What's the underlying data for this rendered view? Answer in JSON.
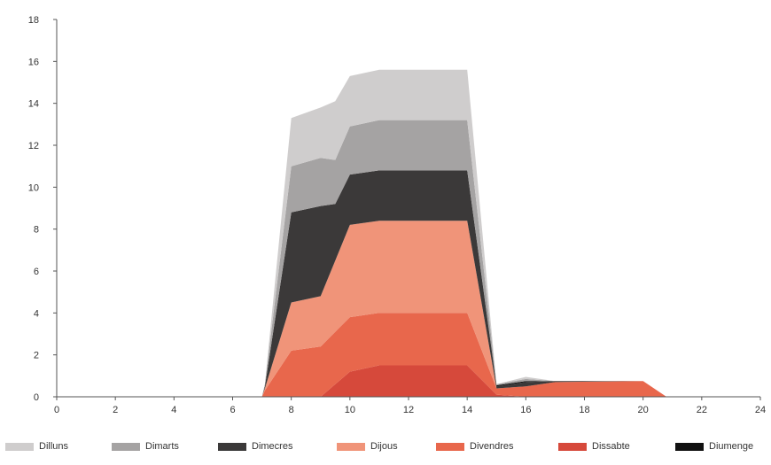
{
  "chart_data": {
    "type": "area",
    "stacked": true,
    "xlim": [
      0,
      24
    ],
    "ylim": [
      0,
      18
    ],
    "x_ticks": [
      "0",
      "2",
      "4",
      "6",
      "8",
      "10",
      "12",
      "14",
      "16",
      "18",
      "20",
      "22",
      "24"
    ],
    "y_ticks": [
      "0",
      "2",
      "4",
      "6",
      "8",
      "10",
      "12",
      "14",
      "16",
      "18"
    ],
    "grid": false,
    "legend_position": "bottom",
    "x": [
      0,
      7,
      7.1,
      8,
      9,
      9.5,
      10,
      11,
      14,
      15,
      16,
      17,
      20,
      20.8,
      24
    ],
    "series": [
      {
        "name": "Dissabte",
        "color": "#d6493b",
        "values": [
          0,
          0,
          0,
          0,
          0,
          0.6,
          1.2,
          1.5,
          1.5,
          0.1,
          0,
          0,
          0,
          0,
          0
        ]
      },
      {
        "name": "Divendres",
        "color": "#e8674c",
        "values": [
          0,
          0,
          0.3,
          2.2,
          2.4,
          2.5,
          2.6,
          2.5,
          2.5,
          0.3,
          0.5,
          0.7,
          0.75,
          0,
          0
        ]
      },
      {
        "name": "Dijous",
        "color": "#f09479",
        "values": [
          0,
          0,
          0.1,
          2.3,
          2.4,
          3.4,
          4.4,
          4.4,
          4.4,
          0,
          0,
          0,
          0,
          0,
          0
        ]
      },
      {
        "name": "Dimecres",
        "color": "#3b3939",
        "values": [
          0,
          0,
          0.1,
          4.3,
          4.3,
          2.7,
          2.4,
          2.4,
          2.4,
          0.1,
          0.2,
          0.05,
          0,
          0,
          0
        ]
      },
      {
        "name": "Diumenge",
        "color": "#111111",
        "values": [
          0,
          0,
          0,
          0,
          0,
          0,
          0,
          0,
          0,
          0.05,
          0.05,
          0,
          0,
          0,
          0
        ]
      },
      {
        "name": "Dimarts",
        "color": "#a5a3a3",
        "values": [
          0,
          0,
          0.1,
          2.2,
          2.3,
          2.1,
          2.3,
          2.4,
          2.4,
          0.05,
          0.1,
          0,
          0,
          0,
          0
        ]
      },
      {
        "name": "Dilluns",
        "color": "#cfcdcd",
        "values": [
          0,
          0,
          0,
          2.3,
          2.4,
          2.8,
          2.4,
          2.4,
          2.4,
          0,
          0.1,
          0,
          0,
          0,
          0
        ]
      }
    ],
    "legend": [
      {
        "name": "Dilluns",
        "color": "#cfcdcd"
      },
      {
        "name": "Dimarts",
        "color": "#a5a3a3"
      },
      {
        "name": "Dimecres",
        "color": "#3b3939"
      },
      {
        "name": "Dijous",
        "color": "#f09479"
      },
      {
        "name": "Divendres",
        "color": "#e8674c"
      },
      {
        "name": "Dissabte",
        "color": "#d6493b"
      },
      {
        "name": "Diumenge",
        "color": "#111111"
      }
    ]
  }
}
